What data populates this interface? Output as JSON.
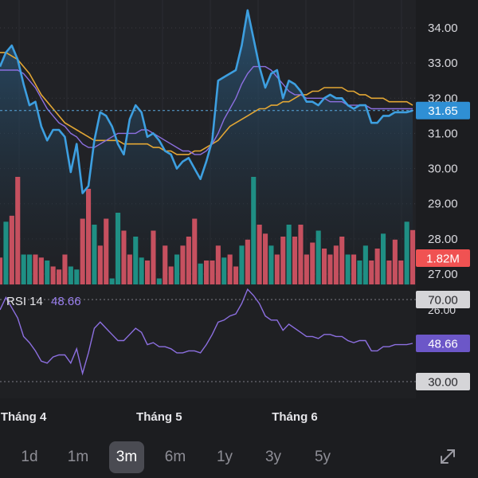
{
  "colors": {
    "background": "#1c1d20",
    "price_line": "#3d9fe0",
    "ma_short": "#8c6fe0",
    "ma_long": "#e2a634",
    "volume_up": "#1f8f84",
    "volume_down": "#c6505f",
    "rsi_line": "#8c6fe0",
    "current_price_badge": "#2f8fd4",
    "volume_badge": "#f05252",
    "rsi_badge": "#6c57c8",
    "level_badge": "#d5d5d8"
  },
  "chart_data": [
    {
      "type": "line",
      "name": "price",
      "yticks": [
        34.0,
        33.0,
        32.0,
        31.0,
        30.0,
        29.0,
        28.0,
        27.0
      ],
      "ylim": [
        26.5,
        34.5
      ],
      "current_price": 31.65,
      "x_labels": [
        "Tháng 4",
        "Tháng 5",
        "Tháng 6"
      ],
      "x_label_positions": [
        4,
        27,
        50
      ],
      "x": [
        0,
        1,
        2,
        3,
        4,
        5,
        6,
        7,
        8,
        9,
        10,
        11,
        12,
        13,
        14,
        15,
        16,
        17,
        18,
        19,
        20,
        21,
        22,
        23,
        24,
        25,
        26,
        27,
        28,
        29,
        30,
        31,
        32,
        33,
        34,
        35,
        36,
        37,
        38,
        39,
        40,
        41,
        42,
        43,
        44,
        45,
        46,
        47,
        48,
        49,
        50,
        51,
        52,
        53,
        54,
        55,
        56,
        57,
        58,
        59,
        60,
        61,
        62,
        63,
        64,
        65,
        66,
        67,
        68,
        69,
        70
      ],
      "series": [
        {
          "key": "close",
          "values": [
            32.9,
            33.3,
            33.5,
            33.1,
            32.4,
            31.8,
            31.9,
            31.2,
            30.8,
            31.1,
            31.1,
            30.9,
            29.9,
            30.7,
            29.3,
            29.5,
            30.8,
            31.6,
            31.5,
            31.2,
            30.7,
            30.4,
            31.4,
            31.8,
            31.6,
            30.9,
            31.0,
            30.8,
            30.5,
            30.4,
            30.0,
            30.2,
            30.3,
            30.0,
            29.7,
            30.2,
            30.8,
            32.5,
            32.6,
            32.7,
            32.8,
            33.5,
            34.5,
            33.7,
            32.9,
            32.3,
            32.7,
            32.8,
            32.0,
            32.5,
            32.4,
            32.2,
            31.9,
            31.9,
            31.8,
            32.0,
            32.1,
            32.0,
            32.0,
            31.8,
            31.7,
            31.8,
            31.8,
            31.3,
            31.3,
            31.5,
            31.5,
            31.6,
            31.6,
            31.6,
            31.65
          ]
        },
        {
          "key": "ma_short",
          "values": [
            32.8,
            32.8,
            32.8,
            32.8,
            32.7,
            32.5,
            32.3,
            32.0,
            31.7,
            31.5,
            31.3,
            31.2,
            31.0,
            30.9,
            30.7,
            30.6,
            30.6,
            30.7,
            30.8,
            30.9,
            31.0,
            31.0,
            31.0,
            31.0,
            31.1,
            31.1,
            31.0,
            30.9,
            30.8,
            30.7,
            30.6,
            30.5,
            30.5,
            30.4,
            30.4,
            30.5,
            30.7,
            31.0,
            31.4,
            31.7,
            32.0,
            32.4,
            32.7,
            32.9,
            32.9,
            32.9,
            32.8,
            32.6,
            32.4,
            32.2,
            32.1,
            32.1,
            32.0,
            32.0,
            32.0,
            32.0,
            31.9,
            31.9,
            31.9,
            31.8,
            31.8,
            31.8,
            31.8,
            31.7,
            31.7,
            31.7,
            31.7,
            31.7,
            31.7,
            31.7,
            31.7
          ]
        },
        {
          "key": "ma_long",
          "values": [
            33.3,
            33.3,
            33.2,
            33.1,
            32.9,
            32.7,
            32.4,
            32.1,
            31.9,
            31.7,
            31.5,
            31.3,
            31.2,
            31.1,
            31.0,
            30.9,
            30.8,
            30.8,
            30.8,
            30.8,
            30.8,
            30.7,
            30.7,
            30.7,
            30.7,
            30.7,
            30.6,
            30.6,
            30.5,
            30.5,
            30.4,
            30.4,
            30.4,
            30.5,
            30.5,
            30.6,
            30.7,
            30.8,
            31.0,
            31.2,
            31.3,
            31.4,
            31.5,
            31.6,
            31.7,
            31.7,
            31.8,
            31.8,
            31.9,
            31.9,
            32.0,
            32.1,
            32.1,
            32.2,
            32.2,
            32.3,
            32.3,
            32.3,
            32.3,
            32.2,
            32.2,
            32.1,
            32.1,
            32.0,
            32.0,
            32.0,
            31.9,
            31.9,
            31.9,
            31.9,
            31.8
          ]
        }
      ]
    },
    {
      "type": "bar",
      "name": "volume",
      "current_label": "1.82M",
      "max": 4.0,
      "values": [
        0.9,
        2.1,
        2.3,
        3.6,
        1.0,
        1.0,
        1.0,
        0.9,
        0.8,
        0.6,
        0.5,
        1.0,
        0.6,
        0.5,
        2.2,
        3.2,
        2.0,
        1.3,
        2.2,
        0.2,
        2.4,
        1.8,
        1.0,
        1.6,
        0.9,
        0.8,
        1.8,
        0.2,
        1.3,
        0.6,
        1.0,
        1.3,
        1.6,
        2.2,
        0.7,
        0.8,
        0.8,
        1.3,
        0.9,
        1.0,
        0.6,
        1.3,
        1.5,
        3.6,
        2.0,
        1.7,
        1.3,
        1.0,
        1.6,
        2.0,
        1.6,
        2.0,
        1.0,
        1.4,
        1.8,
        1.2,
        1.0,
        1.3,
        1.6,
        1.0,
        1.0,
        0.8,
        1.3,
        0.8,
        1.2,
        1.7,
        0.8,
        1.5,
        0.8,
        2.1,
        1.82
      ],
      "up": [
        false,
        true,
        false,
        false,
        true,
        true,
        false,
        false,
        true,
        false,
        false,
        false,
        true,
        true,
        false,
        false,
        true,
        false,
        false,
        true,
        true,
        false,
        false,
        true,
        true,
        false,
        false,
        true,
        false,
        false,
        true,
        false,
        false,
        false,
        true,
        false,
        false,
        false,
        true,
        false,
        false,
        true,
        false,
        true,
        false,
        false,
        true,
        false,
        false,
        true,
        false,
        false,
        false,
        false,
        true,
        false,
        false,
        false,
        false,
        true,
        false,
        true,
        true,
        false,
        false,
        true,
        false,
        false,
        false,
        true,
        false
      ]
    },
    {
      "type": "line",
      "name": "rsi",
      "label": "RSI 14",
      "current_value": "48.66",
      "levels": [
        "70.00",
        "30.00"
      ],
      "partial_tick": "26.00",
      "ylim": [
        26,
        82
      ],
      "values": [
        65,
        71,
        66,
        61,
        52,
        49,
        45,
        40,
        39,
        42,
        43,
        43,
        39,
        46,
        34,
        44,
        56,
        59,
        56,
        53,
        50,
        50,
        53,
        56,
        54,
        48,
        49,
        47,
        47,
        46,
        44,
        44,
        45,
        45,
        44,
        48,
        53,
        59,
        60,
        62,
        63,
        68,
        75,
        72,
        68,
        62,
        60,
        60,
        55,
        58,
        56,
        54,
        52,
        52,
        51,
        53,
        53,
        52,
        52,
        50,
        49,
        50,
        50,
        45,
        45,
        47,
        47,
        48,
        48,
        48,
        48.66
      ]
    }
  ],
  "period_selector": {
    "items": [
      "1d",
      "1m",
      "3m",
      "6m",
      "1y",
      "3y",
      "5y"
    ],
    "active": "3m",
    "expand_icon": "expand-icon"
  }
}
